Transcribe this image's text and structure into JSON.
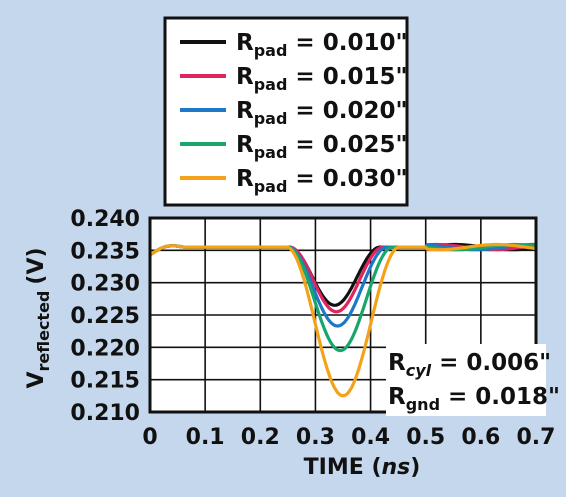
{
  "chart_data": {
    "type": "line",
    "xlabel": {
      "main": "TIME",
      "unit": "ns"
    },
    "ylabel": {
      "main": "V",
      "sub": "reflected",
      "unit": "(V)"
    },
    "xlim": [
      0,
      0.7
    ],
    "ylim": [
      0.21,
      0.24
    ],
    "xticks": [
      "0",
      "0.1",
      "0.2",
      "0.3",
      "0.4",
      "0.5",
      "0.6",
      "0.7"
    ],
    "yticks": [
      "0.210",
      "0.215",
      "0.220",
      "0.225",
      "0.230",
      "0.235",
      "0.240"
    ],
    "grid": true,
    "legend_position": "top",
    "series": [
      {
        "label": "R",
        "sub": "pad",
        "value": " = 0.010\"",
        "color": "#111111",
        "min_y": 0.2265,
        "min_x": 0.335,
        "width": 0.165
      },
      {
        "label": "R",
        "sub": "pad",
        "value": " = 0.015\"",
        "color": "#e0245e",
        "min_y": 0.2255,
        "min_x": 0.338,
        "width": 0.17
      },
      {
        "label": "R",
        "sub": "pad",
        "value": " = 0.020\"",
        "color": "#1f77c8",
        "min_y": 0.2233,
        "min_x": 0.34,
        "width": 0.18
      },
      {
        "label": "R",
        "sub": "pad",
        "value": " = 0.025\"",
        "color": "#19a66b",
        "min_y": 0.2195,
        "min_x": 0.345,
        "width": 0.19
      },
      {
        "label": "R",
        "sub": "pad",
        "value": " = 0.030\"",
        "color": "#f5a21b",
        "min_y": 0.2125,
        "min_x": 0.35,
        "width": 0.205
      }
    ],
    "baseline": 0.2355,
    "annotations": [
      {
        "main": "R",
        "sub": "cyl",
        "value": " = 0.006\""
      },
      {
        "main": "R",
        "sub": "gnd",
        "value": " = 0.018\""
      }
    ]
  },
  "colors": {
    "panel": "#c5d7ec",
    "frame": "#111111"
  }
}
